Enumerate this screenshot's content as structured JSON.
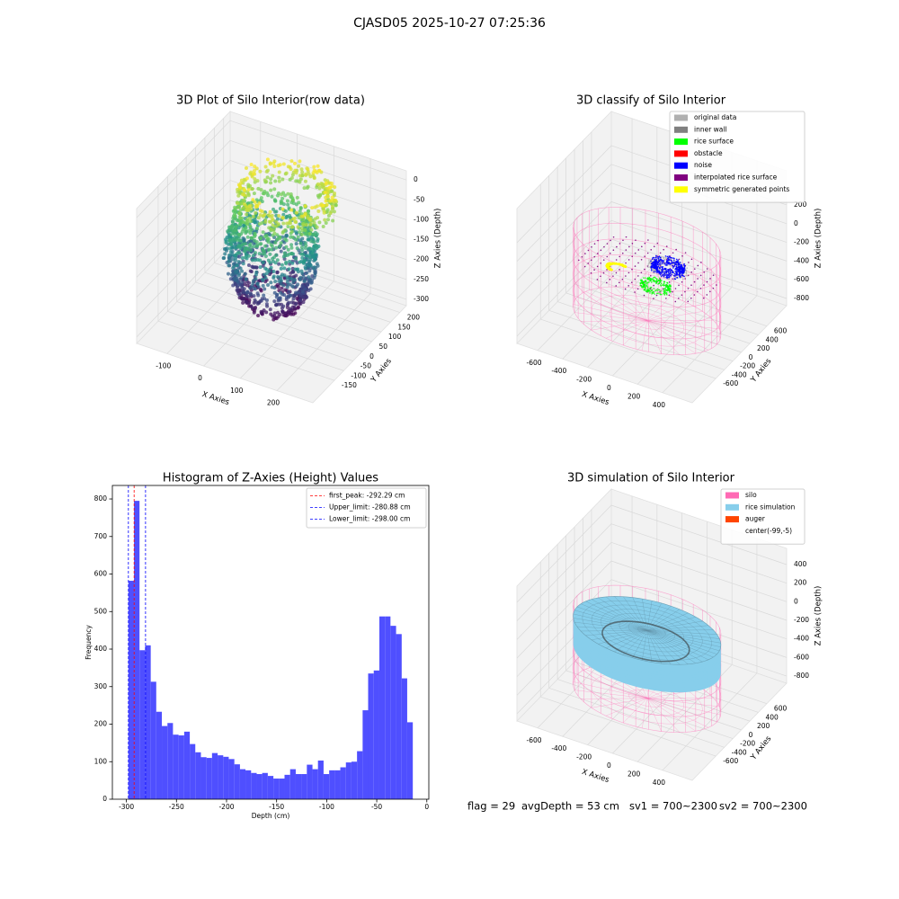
{
  "title": "CJASD05 2025-10-27 07:25:36",
  "footer": [
    "flag = 29",
    "avgDepth = 53 cm",
    "sv1 = 700~2300",
    "sv2 = 700~2300"
  ],
  "chart_data": [
    {
      "type": "scatter3d",
      "title": "3D Plot of Silo Interior(row data)",
      "xlabel": "X Axies",
      "ylabel": "Y Axies",
      "zlabel": "Z Axies (Depth)",
      "xlim": [
        -183,
        298
      ],
      "ylim": [
        -265,
        235
      ],
      "zlim": [
        -316,
        23
      ],
      "xticks": [
        -100,
        0,
        100,
        200
      ],
      "yticks": [
        -150,
        -100,
        -50,
        0,
        50,
        100,
        150,
        200
      ],
      "zticks": [
        0,
        -50,
        -100,
        -150,
        -200,
        -250,
        -300
      ]
    },
    {
      "type": "scatter3d",
      "title": "3D classify of Silo Interior",
      "xlabel": "X Axies",
      "ylabel": "Y Axies",
      "zlabel": "Z Axies (Depth)",
      "xlim": [
        -766,
        638
      ],
      "ylim": [
        -1155,
        1067
      ],
      "zlim": [
        -877,
        565
      ],
      "xticks": [
        -600,
        -400,
        -200,
        0,
        200,
        400
      ],
      "yticks": [
        -600,
        -400,
        -200,
        0,
        200,
        400,
        600
      ],
      "zticks": [
        200,
        0,
        -200,
        -400,
        -600,
        -800
      ],
      "legend": [
        {
          "name": "original data",
          "color": "#b0b0b0"
        },
        {
          "name": "inner wall",
          "color": "#808080"
        },
        {
          "name": "rice surface",
          "color": "#00ff00"
        },
        {
          "name": "obstacle",
          "color": "#ff0000"
        },
        {
          "name": "noise",
          "color": "#0000ff"
        },
        {
          "name": "interpolated rice surface",
          "color": "#800080"
        },
        {
          "name": "symmetric generated points",
          "color": "#ffff00"
        }
      ]
    },
    {
      "type": "histogram",
      "title": "Histogram of Z-Axies (Height) Values",
      "xlabel": "Depth (cm)",
      "ylabel": "Frequency",
      "color": "#4f4fff",
      "xlim": [
        -314,
        2
      ],
      "ylim": [
        0,
        836
      ],
      "xticks": [
        -300,
        -250,
        -200,
        -150,
        -100,
        -50,
        0
      ],
      "yticks": [
        0,
        100,
        200,
        300,
        400,
        500,
        600,
        700,
        800
      ],
      "bins": [
        -298.0,
        -292.4,
        -286.9,
        -281.3,
        -275.7,
        -270.2,
        -264.6,
        -259.0,
        -253.5,
        -247.9,
        -242.3,
        -236.7,
        -231.2,
        -225.6,
        -220.0,
        -214.5,
        -208.9,
        -203.3,
        -197.8,
        -192.2,
        -186.6,
        -181.1,
        -175.5,
        -169.9,
        -164.4,
        -158.8,
        -153.2,
        -147.6,
        -142.1,
        -136.5,
        -130.9,
        -125.4,
        -119.8,
        -114.2,
        -108.7,
        -103.1,
        -97.5,
        -91.9,
        -86.4,
        -80.8,
        -75.3,
        -69.7,
        -64.1,
        -58.6,
        -53.0,
        -47.4,
        -41.8,
        -36.3,
        -30.7,
        -25.1,
        -19.6,
        -14.0
      ],
      "values": [
        582,
        795,
        397,
        410,
        313,
        233,
        195,
        203,
        172,
        170,
        180,
        147,
        125,
        112,
        110,
        123,
        117,
        113,
        107,
        93,
        80,
        77,
        70,
        67,
        70,
        62,
        55,
        55,
        65,
        80,
        67,
        67,
        92,
        80,
        103,
        67,
        77,
        77,
        85,
        98,
        100,
        128,
        237,
        335,
        343,
        487,
        487,
        462,
        440,
        322,
        205
      ],
      "lines": [
        {
          "value": -292.29,
          "label": "first_peak: -292.29 cm",
          "color": "#ff0000"
        },
        {
          "value": -280.88,
          "label": "Upper_limit: -280.88 cm",
          "color": "#0000ff"
        },
        {
          "value": -298.0,
          "label": "Lower_limit: -298.00 cm",
          "color": "#0000ff"
        }
      ],
      "legend_position": "upper right"
    },
    {
      "type": "scatter3d",
      "title": "3D simulation of Silo Interior",
      "xlabel": "X Axies",
      "ylabel": "Y Axies",
      "zlabel": "Z Axies (Depth)",
      "xlim": [
        -766,
        638
      ],
      "ylim": [
        -1155,
        1067
      ],
      "zlim": [
        -877,
        574
      ],
      "xticks": [
        -600,
        -400,
        -200,
        0,
        200,
        400
      ],
      "yticks": [
        -600,
        -400,
        -200,
        0,
        200,
        400,
        600
      ],
      "zticks": [
        400,
        200,
        0,
        -200,
        -400,
        -600,
        -800
      ],
      "legend": [
        {
          "name": "silo",
          "color": "#ff69b4"
        },
        {
          "name": "rice simulation",
          "color": "#87ceeb"
        },
        {
          "name": "auger",
          "color": "#ff4500"
        },
        {
          "name": "center(-99,-5)"
        }
      ]
    }
  ]
}
